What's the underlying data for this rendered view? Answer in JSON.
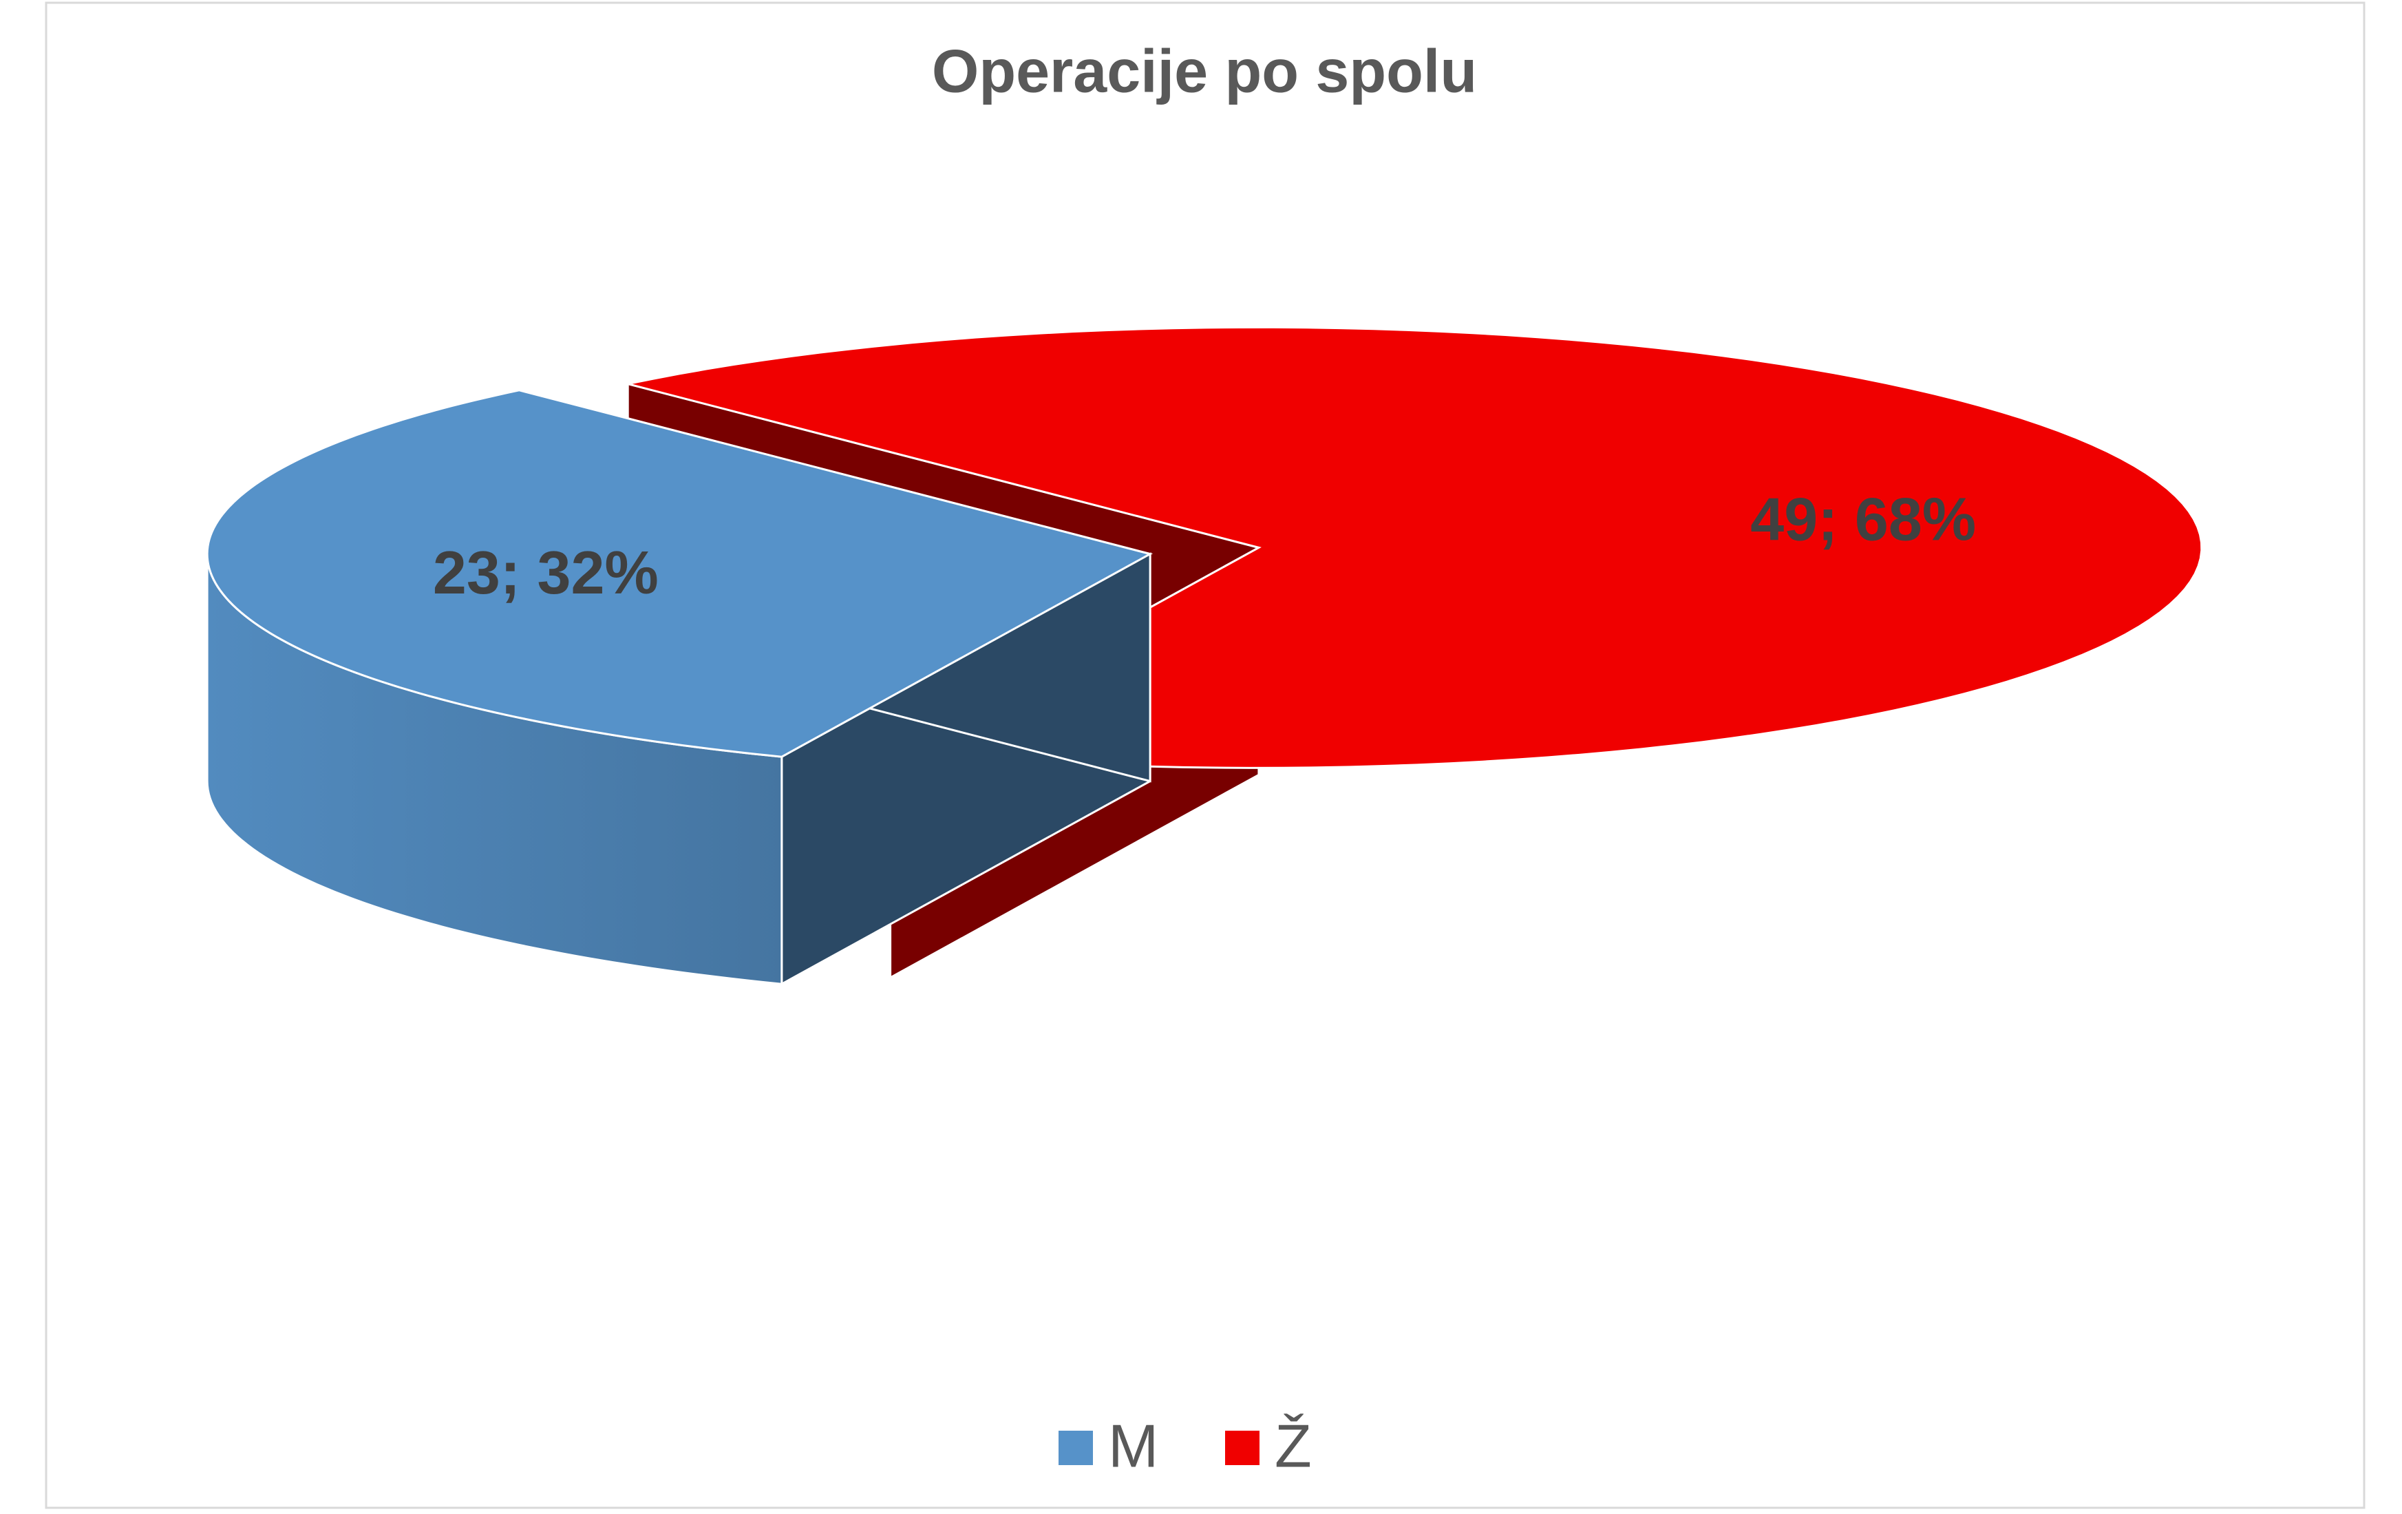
{
  "chart_data": {
    "type": "pie3d",
    "title": "Operacije po spolu",
    "categories": [
      "M",
      "Ž"
    ],
    "values": [
      23,
      49
    ],
    "value_labels": [
      "23; 32%",
      "49; 68%"
    ],
    "colors": [
      "#5692c9",
      "#f00000"
    ],
    "legend": "bottom"
  }
}
